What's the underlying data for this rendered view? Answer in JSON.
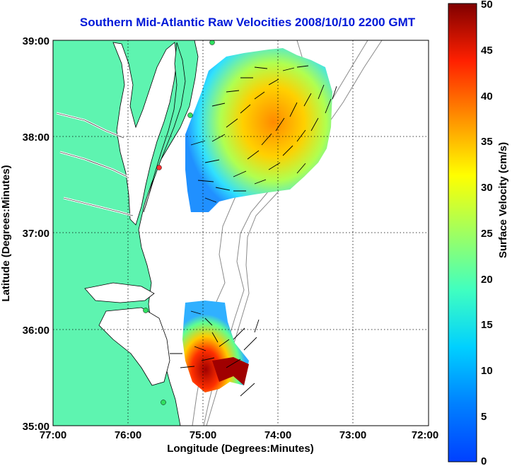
{
  "title": "Southern Mid-Atlantic Raw Velocities 2008/10/10 2200 GMT",
  "x_axis": {
    "label": "Longitude (Degrees:Minutes)",
    "ticks": [
      "77:00",
      "76:00",
      "75:00",
      "74:00",
      "73:00",
      "72:00"
    ]
  },
  "y_axis": {
    "label": "Latitude (Degrees:Minutes)",
    "ticks": [
      "39:00",
      "38:00",
      "37:00",
      "36:00",
      "35:00"
    ]
  },
  "colorbar": {
    "label": "Surface Velocity (cm/s)",
    "ticks": [
      "50",
      "45",
      "40",
      "35",
      "30",
      "25",
      "20",
      "15",
      "10",
      "5",
      "0"
    ],
    "range": [
      0,
      50
    ],
    "colormap": "jet"
  },
  "map": {
    "land_color": "#5ef4b0",
    "lon_range": [
      -77,
      -72
    ],
    "lat_range": [
      35,
      39
    ],
    "grid": "dotted"
  }
}
